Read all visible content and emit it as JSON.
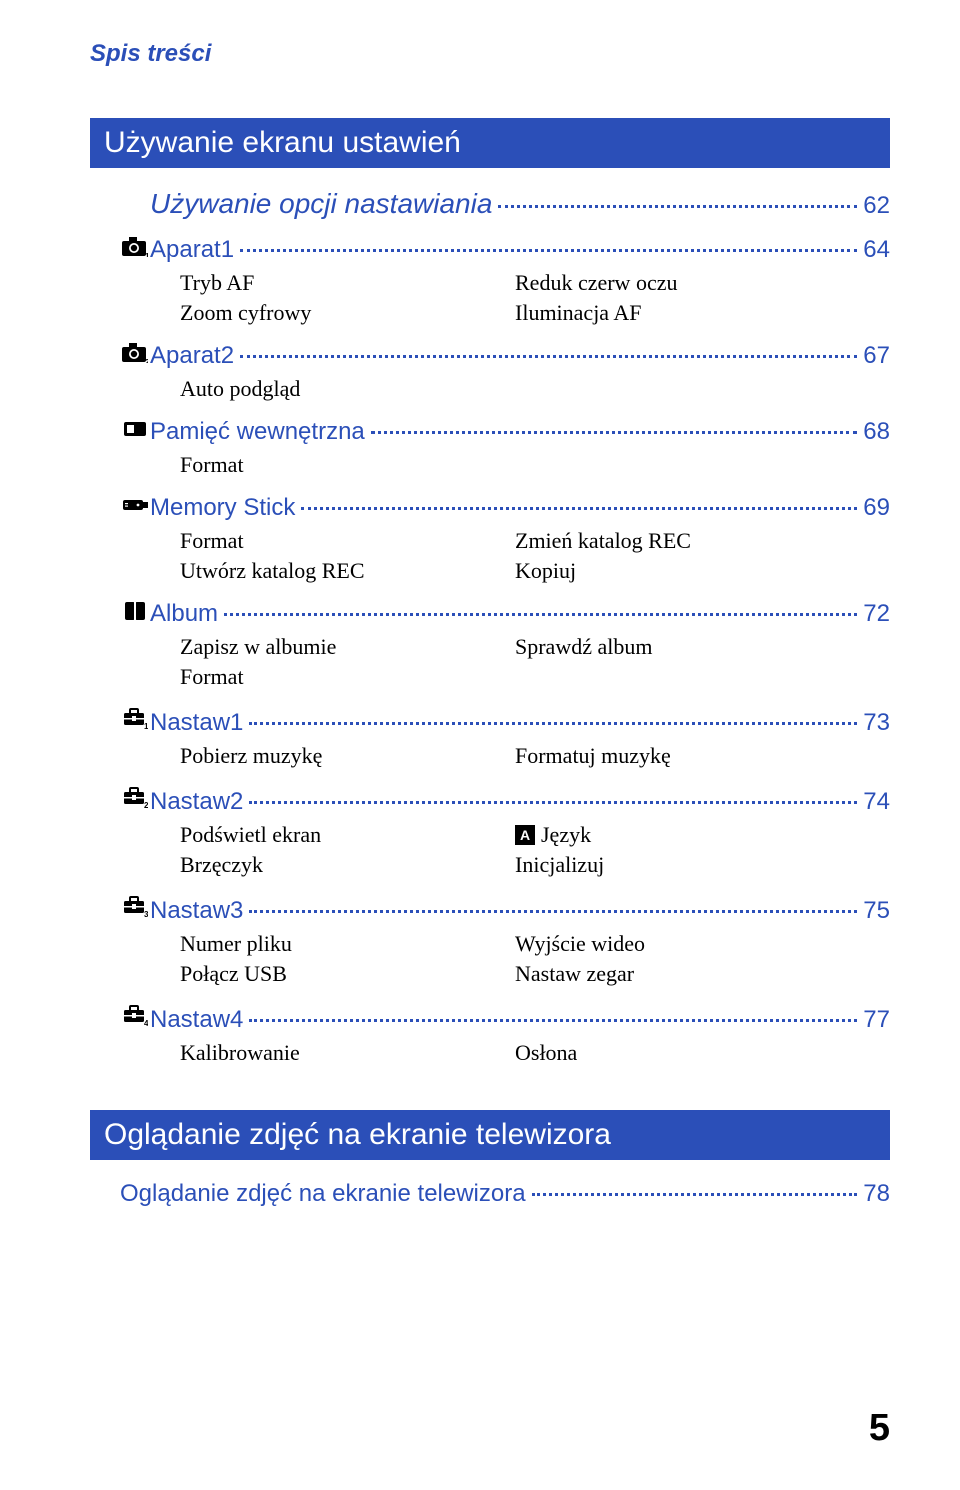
{
  "header": {
    "title": "Spis treści"
  },
  "section1": {
    "banner": "Używanie ekranu ustawień",
    "subsection": {
      "label": "Używanie opcji nastawiania",
      "page": "62"
    },
    "items": [
      {
        "icon": "camera1",
        "label": "Aparat1",
        "page": "64",
        "left": [
          "Tryb AF",
          "Zoom cyfrowy"
        ],
        "right": [
          "Reduk czerw oczu",
          "Iluminacja AF"
        ]
      },
      {
        "icon": "camera2",
        "label": "Aparat2",
        "page": "67",
        "left": [
          "Auto podgląd"
        ],
        "right": []
      },
      {
        "icon": "internal-memory",
        "label": "Pamięć wewnętrzna",
        "page": "68",
        "left": [
          "Format"
        ],
        "right": []
      },
      {
        "icon": "memory-stick",
        "label": "Memory Stick",
        "page": "69",
        "left": [
          "Format",
          "Utwórz katalog REC"
        ],
        "right": [
          "Zmień katalog REC",
          "Kopiuj"
        ]
      },
      {
        "icon": "album",
        "label": "Album",
        "page": "72",
        "left": [
          "Zapisz w albumie",
          "Format"
        ],
        "right": [
          "Sprawdź album"
        ]
      },
      {
        "icon": "toolbox1",
        "label": "Nastaw1",
        "page": "73",
        "left": [
          "Pobierz muzykę"
        ],
        "right": [
          "Formatuj muzykę"
        ]
      },
      {
        "icon": "toolbox2",
        "label": "Nastaw2",
        "page": "74",
        "left": [
          "Podświetl ekran",
          "Brzęczyk"
        ],
        "right": [
          "[A] Język",
          "Inicjalizuj"
        ]
      },
      {
        "icon": "toolbox3",
        "label": "Nastaw3",
        "page": "75",
        "left": [
          "Numer pliku",
          "Połącz USB"
        ],
        "right": [
          "Wyjście wideo",
          "Nastaw zegar"
        ]
      },
      {
        "icon": "toolbox4",
        "label": "Nastaw4",
        "page": "77",
        "left": [
          "Kalibrowanie"
        ],
        "right": [
          "Osłona"
        ]
      }
    ]
  },
  "section2": {
    "banner": "Oglądanie zdjęć na ekranie telewizora",
    "item": {
      "label": "Oglądanie zdjęć na ekranie telewizora",
      "page": "78"
    }
  },
  "pageNumber": "5",
  "colors": {
    "link": "#2b4fb8",
    "banner_bg": "#2b4fb8",
    "banner_text": "#ffffff",
    "body_text": "#000000"
  }
}
